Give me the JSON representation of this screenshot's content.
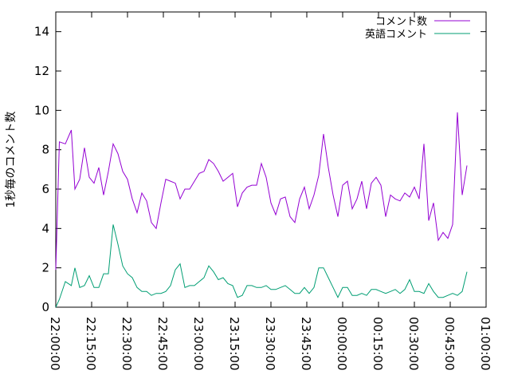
{
  "chart_data": {
    "type": "line",
    "title": "",
    "xlabel": "",
    "ylabel": "1秒毎のコメント数",
    "ylim": [
      0,
      15
    ],
    "yticks": [
      0,
      2,
      4,
      6,
      8,
      10,
      12,
      14
    ],
    "xlim": [
      "22:00:00",
      "01:00:00"
    ],
    "xticks": [
      "22:00:00",
      "22:15:00",
      "22:30:00",
      "22:45:00",
      "23:00:00",
      "23:15:00",
      "23:30:00",
      "23:45:00",
      "00:00:00",
      "00:15:00",
      "00:30:00",
      "00:45:00",
      "01:00:00"
    ],
    "grid": false,
    "legend_position": "top-right",
    "series": [
      {
        "name": "コメント数",
        "color": "#9400d3",
        "x": [
          "22:00:00",
          "22:01:30",
          "22:04:00",
          "22:06:30",
          "22:08:00",
          "22:10:00",
          "22:12:00",
          "22:14:00",
          "22:16:00",
          "22:18:00",
          "22:20:00",
          "22:22:00",
          "22:24:00",
          "22:26:00",
          "22:28:00",
          "22:30:00",
          "22:32:00",
          "22:34:00",
          "22:36:00",
          "22:38:00",
          "22:40:00",
          "22:42:00",
          "22:44:00",
          "22:46:00",
          "22:48:00",
          "22:50:00",
          "22:52:00",
          "22:54:00",
          "22:56:00",
          "22:58:00",
          "23:00:00",
          "23:02:00",
          "23:04:00",
          "23:06:00",
          "23:08:00",
          "23:10:00",
          "23:12:00",
          "23:14:00",
          "23:16:00",
          "23:18:00",
          "23:20:00",
          "23:22:00",
          "23:24:00",
          "23:26:00",
          "23:28:00",
          "23:30:00",
          "23:32:00",
          "23:34:00",
          "23:36:00",
          "23:38:00",
          "23:40:00",
          "23:42:00",
          "23:44:00",
          "23:46:00",
          "23:48:00",
          "23:50:00",
          "23:52:00",
          "23:54:00",
          "23:56:00",
          "23:58:00",
          "00:00:00",
          "00:02:00",
          "00:04:00",
          "00:06:00",
          "00:08:00",
          "00:10:00",
          "00:12:00",
          "00:14:00",
          "00:16:00",
          "00:18:00",
          "00:20:00",
          "00:22:00",
          "00:24:00",
          "00:26:00",
          "00:28:00",
          "00:30:00",
          "00:32:00",
          "00:34:00",
          "00:36:00",
          "00:38:00",
          "00:40:00",
          "00:42:00",
          "00:44:00",
          "00:46:00",
          "00:48:00",
          "00:50:00",
          "00:52:00"
        ],
        "values": [
          1.9,
          8.4,
          8.3,
          9.0,
          6.0,
          6.5,
          8.1,
          6.6,
          6.3,
          7.1,
          5.7,
          6.9,
          8.3,
          7.8,
          6.9,
          6.5,
          5.5,
          4.8,
          5.8,
          5.4,
          4.3,
          4.0,
          5.3,
          6.5,
          6.4,
          6.3,
          5.5,
          6.0,
          6.0,
          6.4,
          6.8,
          6.9,
          7.5,
          7.3,
          6.9,
          6.4,
          6.6,
          6.8,
          5.1,
          5.8,
          6.1,
          6.2,
          6.2,
          7.3,
          6.6,
          5.3,
          4.7,
          5.5,
          5.6,
          4.6,
          4.3,
          5.5,
          6.1,
          5.0,
          5.7,
          6.7,
          8.8,
          7.1,
          5.7,
          4.6,
          6.2,
          6.4,
          5.0,
          5.5,
          6.4,
          5.0,
          6.3,
          6.6,
          6.2,
          4.6,
          5.7,
          5.5,
          5.4,
          5.8,
          5.6,
          6.1,
          5.5,
          8.3,
          4.4,
          5.3,
          3.4,
          3.8,
          3.5,
          4.2,
          9.9,
          5.7,
          7.2
        ]
      },
      {
        "name": "英語コメント",
        "color": "#009e73",
        "x": [
          "22:00:00",
          "22:01:30",
          "22:04:00",
          "22:06:30",
          "22:08:00",
          "22:10:00",
          "22:12:00",
          "22:14:00",
          "22:16:00",
          "22:18:00",
          "22:20:00",
          "22:22:00",
          "22:24:00",
          "22:26:00",
          "22:28:00",
          "22:30:00",
          "22:32:00",
          "22:34:00",
          "22:36:00",
          "22:38:00",
          "22:40:00",
          "22:42:00",
          "22:44:00",
          "22:46:00",
          "22:48:00",
          "22:50:00",
          "22:52:00",
          "22:54:00",
          "22:56:00",
          "22:58:00",
          "23:00:00",
          "23:02:00",
          "23:04:00",
          "23:06:00",
          "23:08:00",
          "23:10:00",
          "23:12:00",
          "23:14:00",
          "23:16:00",
          "23:18:00",
          "23:20:00",
          "23:22:00",
          "23:24:00",
          "23:26:00",
          "23:28:00",
          "23:30:00",
          "23:32:00",
          "23:34:00",
          "23:36:00",
          "23:38:00",
          "23:40:00",
          "23:42:00",
          "23:44:00",
          "23:46:00",
          "23:48:00",
          "23:50:00",
          "23:52:00",
          "23:54:00",
          "23:56:00",
          "23:58:00",
          "00:00:00",
          "00:02:00",
          "00:04:00",
          "00:06:00",
          "00:08:00",
          "00:10:00",
          "00:12:00",
          "00:14:00",
          "00:16:00",
          "00:18:00",
          "00:20:00",
          "00:22:00",
          "00:24:00",
          "00:26:00",
          "00:28:00",
          "00:30:00",
          "00:32:00",
          "00:34:00",
          "00:36:00",
          "00:38:00",
          "00:40:00",
          "00:42:00",
          "00:44:00",
          "00:46:00",
          "00:48:00",
          "00:50:00",
          "00:52:00"
        ],
        "values": [
          0.0,
          0.4,
          1.3,
          1.1,
          2.0,
          1.0,
          1.1,
          1.6,
          1.0,
          1.0,
          1.7,
          1.7,
          4.2,
          3.2,
          2.1,
          1.7,
          1.5,
          1.0,
          0.8,
          0.8,
          0.6,
          0.7,
          0.7,
          0.8,
          1.1,
          1.9,
          2.2,
          1.0,
          1.1,
          1.1,
          1.3,
          1.5,
          2.1,
          1.8,
          1.4,
          1.5,
          1.2,
          1.1,
          0.5,
          0.6,
          1.1,
          1.1,
          1.0,
          1.0,
          1.1,
          0.9,
          0.9,
          1.0,
          1.1,
          0.9,
          0.7,
          0.7,
          1.0,
          0.7,
          1.0,
          2.0,
          2.0,
          1.5,
          1.0,
          0.5,
          1.0,
          1.0,
          0.6,
          0.6,
          0.7,
          0.6,
          0.9,
          0.9,
          0.8,
          0.7,
          0.8,
          0.9,
          0.7,
          0.9,
          1.4,
          0.8,
          0.8,
          0.7,
          1.2,
          0.8,
          0.5,
          0.5,
          0.6,
          0.7,
          0.6,
          0.8,
          1.8
        ]
      }
    ]
  }
}
